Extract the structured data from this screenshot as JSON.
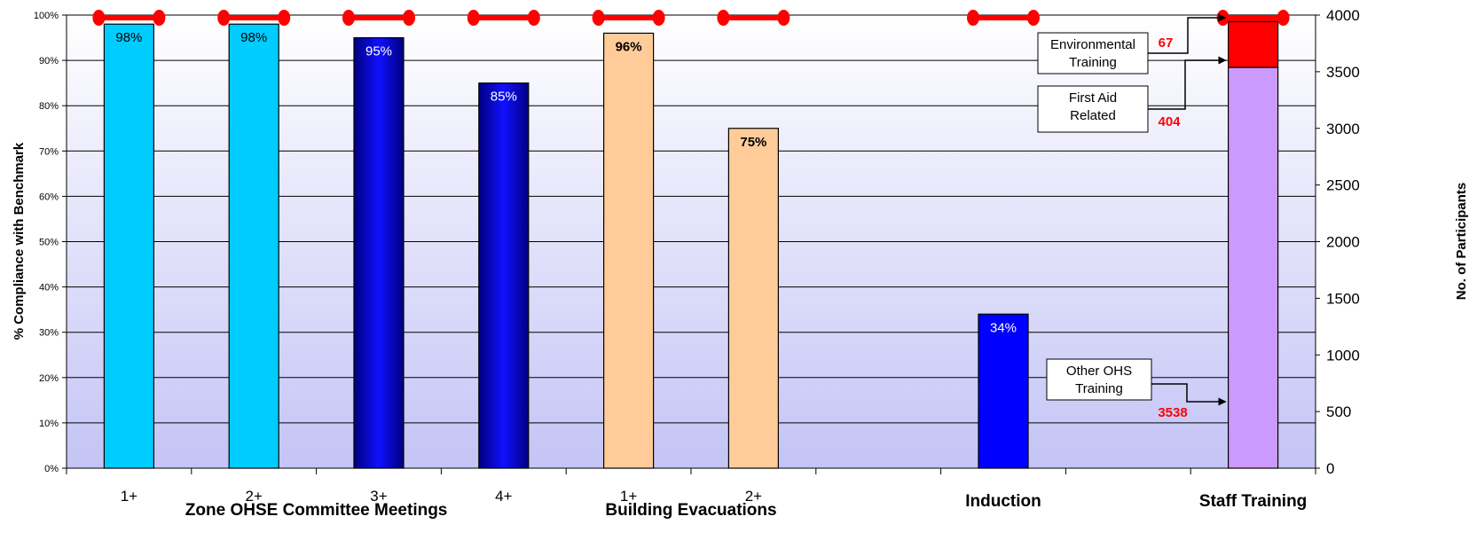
{
  "chart_data": {
    "type": "bar",
    "title": "",
    "ylabel": "% Compliance with Benchmark",
    "y2label": "No. of Participants",
    "ylim": [
      0,
      100
    ],
    "y2lim": [
      0,
      4000
    ],
    "yticks": [
      "0%",
      "10%",
      "20%",
      "30%",
      "40%",
      "50%",
      "60%",
      "70%",
      "80%",
      "90%",
      "100%"
    ],
    "y2ticks": [
      "0",
      "500",
      "1000",
      "1500",
      "2000",
      "2500",
      "3000",
      "3500",
      "4000"
    ],
    "grid": true,
    "groups": [
      {
        "label": "Zone OHSE Committee Meetings",
        "start": 0,
        "end": 3
      },
      {
        "label": "Building Evacuations",
        "start": 4,
        "end": 5
      },
      {
        "label": "Induction",
        "start": 7,
        "end": 7
      },
      {
        "label": "Staff Training",
        "start": 9,
        "end": 9
      }
    ],
    "categories": [
      "1+",
      "2+",
      "3+",
      "4+",
      "1+",
      "2+",
      "",
      "",
      "",
      ""
    ],
    "compliance_bars": [
      {
        "slot": 0,
        "value": 98,
        "label": "98%",
        "color": "#00CCFF",
        "style": "flat",
        "label_color": "#000000",
        "label_bold": false
      },
      {
        "slot": 1,
        "value": 98,
        "label": "98%",
        "color": "#00CCFF",
        "style": "flat",
        "label_color": "#000000",
        "label_bold": false
      },
      {
        "slot": 2,
        "value": 95,
        "label": "95%",
        "color": "#000080",
        "style": "gradient",
        "label_color": "#ffffff",
        "label_bold": false
      },
      {
        "slot": 3,
        "value": 85,
        "label": "85%",
        "color": "#000080",
        "style": "gradient",
        "label_color": "#ffffff",
        "label_bold": false
      },
      {
        "slot": 4,
        "value": 96,
        "label": "96%",
        "color": "#FFCC99",
        "style": "flat",
        "label_color": "#000000",
        "label_bold": true
      },
      {
        "slot": 5,
        "value": 75,
        "label": "75%",
        "color": "#FFCC99",
        "style": "flat",
        "label_color": "#000000",
        "label_bold": true
      },
      {
        "slot": 7,
        "value": 34,
        "label": "34%",
        "color": "#0000FF",
        "style": "flat",
        "label_color": "#ffffff",
        "label_bold": false
      }
    ],
    "benchmark": {
      "value": 100,
      "color": "#FF0000",
      "slots": [
        0,
        1,
        2,
        3,
        4,
        5,
        7,
        9
      ]
    },
    "participants": {
      "slot": 9,
      "stack": [
        {
          "name": "Other OHS Training",
          "value": 3538,
          "label": "3538",
          "color": "#CC99FF"
        },
        {
          "name": "First Aid Related",
          "value": 404,
          "label": "404",
          "color": "#FF0000"
        },
        {
          "name": "Environmental Training",
          "value": 67,
          "label": "67",
          "color": "#FF0000"
        }
      ]
    },
    "callouts": [
      {
        "lines": [
          "Environmental",
          "Training"
        ],
        "value": "67",
        "target": 4000
      },
      {
        "lines": [
          "First Aid",
          "Related"
        ],
        "value": "404",
        "target": 3600
      },
      {
        "lines": [
          "Other OHS",
          "Training"
        ],
        "value": "3538",
        "target": 600
      }
    ]
  }
}
